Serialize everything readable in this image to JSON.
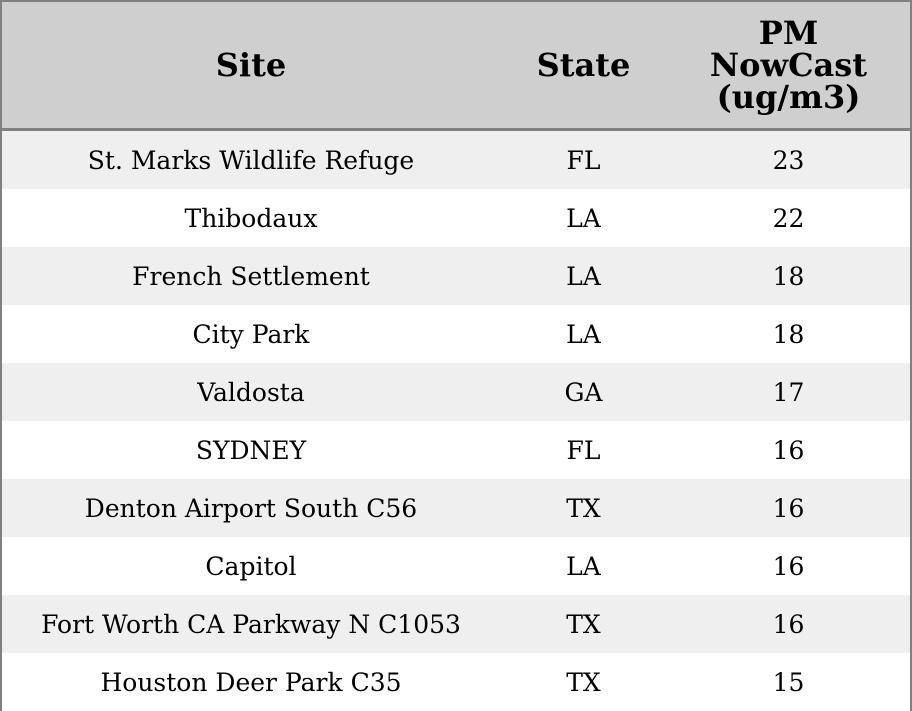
{
  "table": {
    "header": [
      "Site",
      "State",
      "PM\nNowCast\n(ug/m3)"
    ],
    "rows": [
      [
        "St. Marks Wildlife Refuge",
        "FL",
        23
      ],
      [
        "Thibodaux",
        "LA",
        22
      ],
      [
        "French Settlement",
        "LA",
        18
      ],
      [
        "City Park",
        "LA",
        18
      ],
      [
        "Valdosta",
        "GA",
        17
      ],
      [
        "SYDNEY",
        "FL",
        16
      ],
      [
        "Denton Airport South C56",
        "TX",
        16
      ],
      [
        "Capitol",
        "LA",
        16
      ],
      [
        "Fort Worth CA Parkway N C1053",
        "TX",
        16
      ],
      [
        "Houston Deer Park C35",
        "TX",
        15
      ]
    ]
  }
}
